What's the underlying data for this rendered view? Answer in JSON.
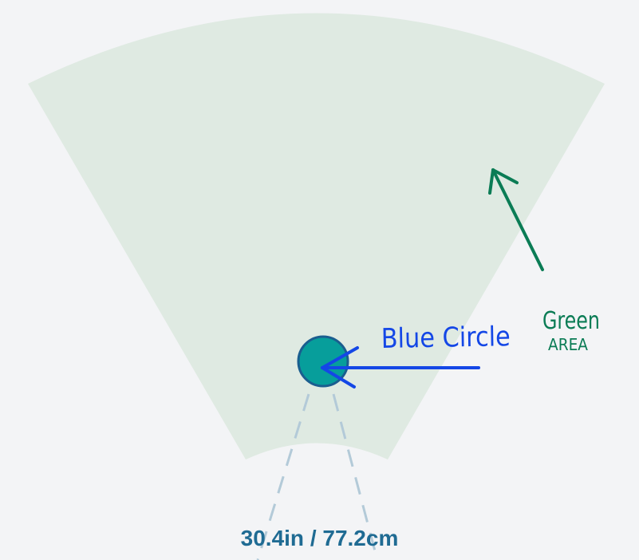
{
  "colors": {
    "background": "#f3f4f6",
    "green_area": "#dfeae2",
    "circle_fill": "#079e9b",
    "circle_stroke": "#1a5e8f",
    "dashed_lines": "#b3cad8",
    "blue_annotation": "#1447e6",
    "green_annotation": "#0b7c55",
    "measurement_text": "#1f6b93"
  },
  "annotations": {
    "blue_label": "Blue Circle",
    "green_label_line1": "Green",
    "green_label_line2": "area"
  },
  "measurement": {
    "label": "30.4in / 77.2cm"
  }
}
